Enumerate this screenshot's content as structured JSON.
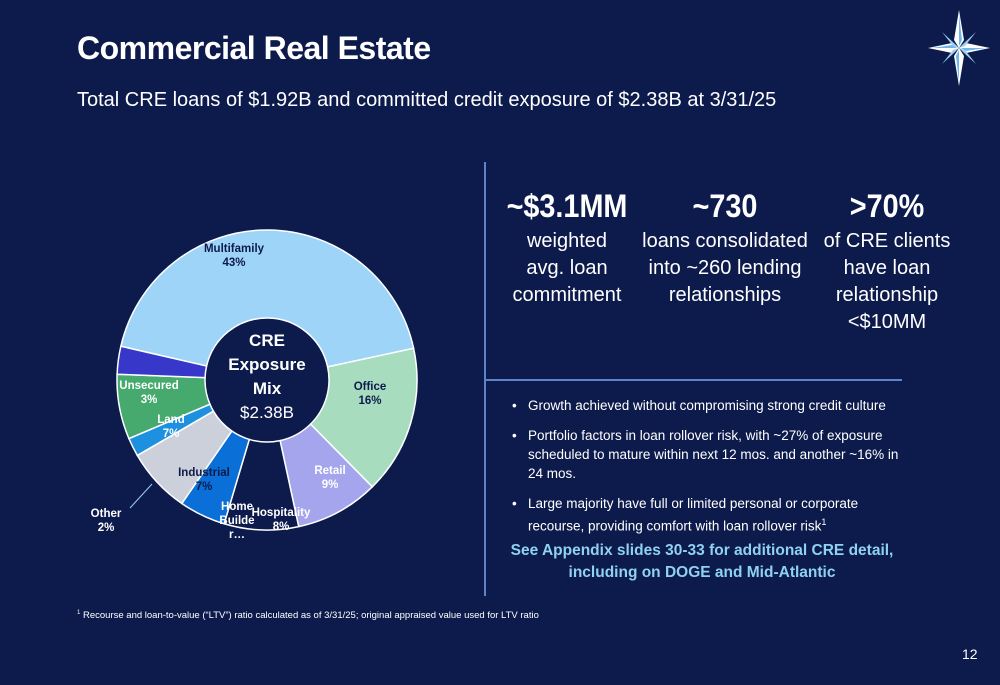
{
  "slide": {
    "title": "Commercial Real Estate",
    "subtitle": "Total CRE loans of $1.92B and committed credit exposure of $2.38B at 3/31/25",
    "page_number": "12"
  },
  "chart_data": {
    "type": "pie",
    "donut": true,
    "center_label": [
      "CRE",
      "Exposure",
      "Mix"
    ],
    "center_value": "$2.38B",
    "slices": [
      {
        "name": "Multifamily",
        "value": 43,
        "label": "43%",
        "color": "#9ed4f8"
      },
      {
        "name": "Office",
        "value": 16,
        "label": "16%",
        "color": "#a8dcbf"
      },
      {
        "name": "Retail",
        "value": 9,
        "label": "9%",
        "color": "#a5a5ee"
      },
      {
        "name": "Hospitality",
        "value": 8,
        "label": "8%",
        "color": "#0d1b4c"
      },
      {
        "name": "Home Builde r…",
        "value": 5,
        "label": "",
        "color": "#0a6fd6"
      },
      {
        "name": "Industrial",
        "value": 7,
        "label": "7%",
        "color": "#ccd0da"
      },
      {
        "name": "Other",
        "value": 2,
        "label": "2%",
        "color": "#1e90e0"
      },
      {
        "name": "Land",
        "value": 7,
        "label": "7%",
        "color": "#46a96e"
      },
      {
        "name": "Unsecured",
        "value": 3,
        "label": "3%",
        "color": "#3737c9"
      }
    ]
  },
  "stats": [
    {
      "value": "~$3.1MM",
      "description": [
        "weighted",
        "avg. loan",
        "commitment"
      ]
    },
    {
      "value": "~730",
      "description": [
        "loans consolidated",
        "into ~260 lending",
        "relationships"
      ]
    },
    {
      "value": ">70%",
      "description": [
        "of CRE clients",
        "have loan",
        "relationship",
        "<$10MM"
      ]
    }
  ],
  "bullets": [
    "Growth achieved without compromising strong credit culture",
    "Portfolio factors in loan rollover risk, with ~27% of exposure scheduled to mature within next 12 mos. and another ~16% in 24 mos.",
    "Large majority have full or limited personal or corporate recourse, providing comfort with loan rollover risk"
  ],
  "bullet_3_superscript": "1",
  "appendix_note": [
    "See Appendix slides 30-33 for additional CRE detail,",
    "including on DOGE and Mid-Atlantic"
  ],
  "footnote": {
    "marker": "1",
    "text": "Recourse and loan-to-value (“LTV”) ratio calculated as of 3/31/25; original appraised value used for LTV ratio"
  },
  "colors": {
    "background": "#0d1b4c",
    "divider": "#5e83c9",
    "appendix_text": "#8fd2f0"
  }
}
